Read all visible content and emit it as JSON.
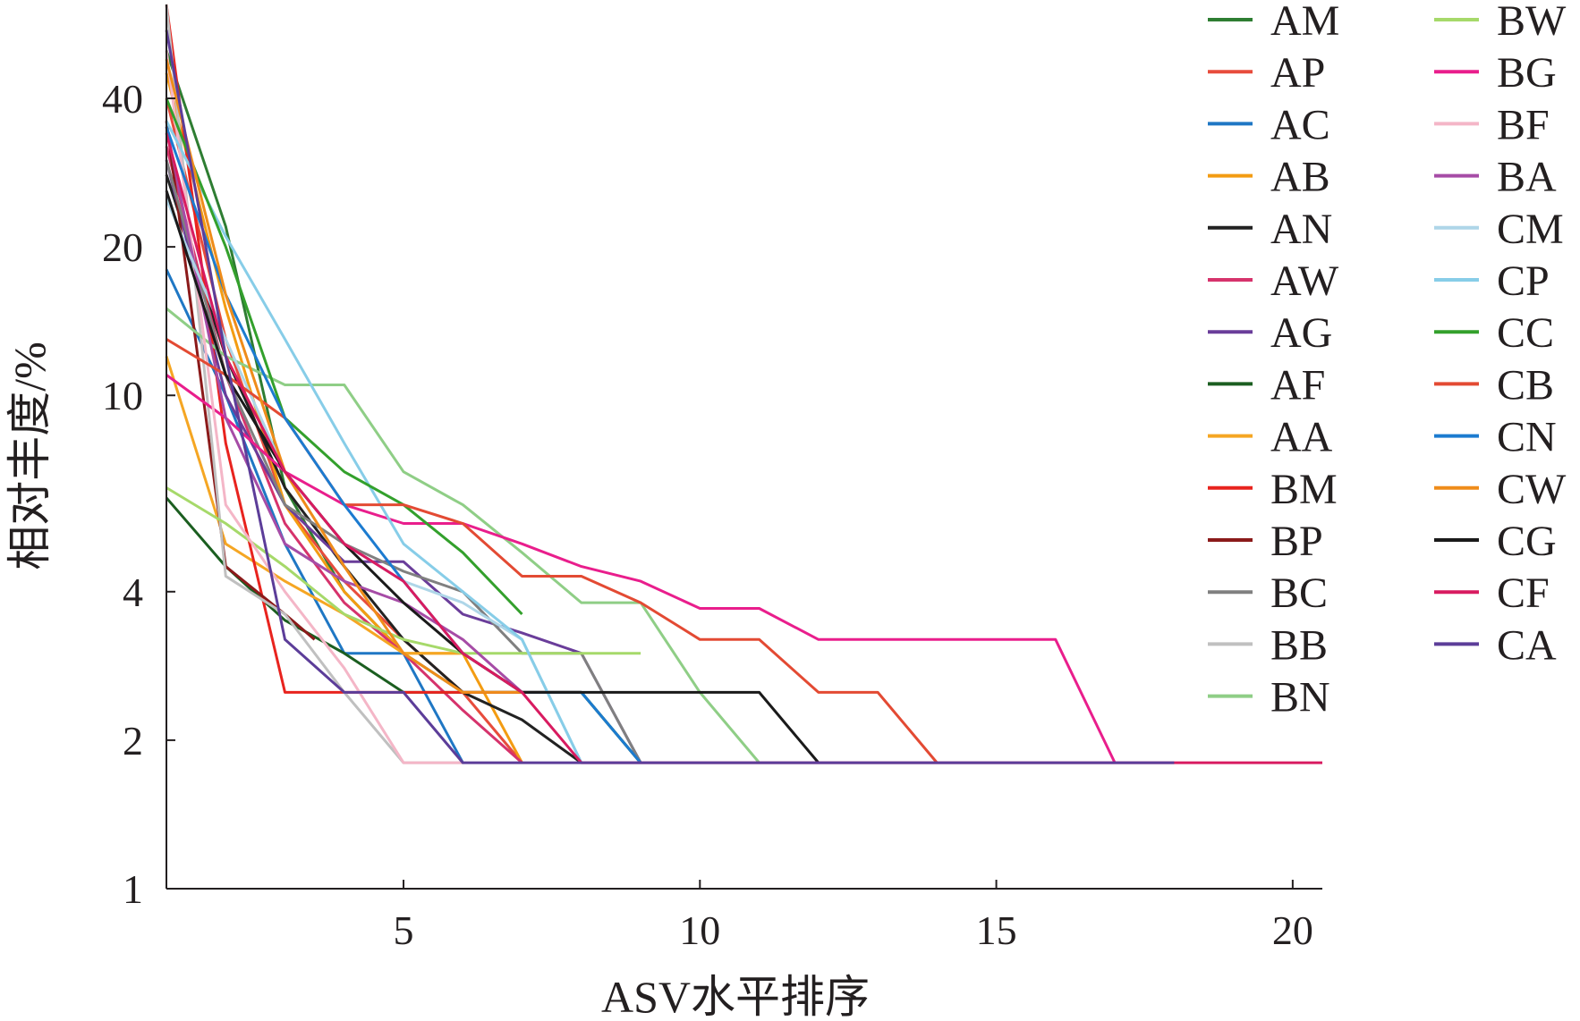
{
  "chart_data": {
    "type": "line",
    "title": "",
    "xlabel": "ASV水平排序",
    "ylabel": "相对丰度/%",
    "xscale": "linear",
    "yscale": "log",
    "xlim": [
      1,
      20.5
    ],
    "ylim": [
      1,
      62
    ],
    "xticks": [
      5,
      10,
      15,
      20
    ],
    "xtick_labels": [
      "5",
      "10",
      "15",
      "20"
    ],
    "yticks": [
      1,
      2,
      4,
      10,
      20,
      40
    ],
    "ytick_labels": [
      "1",
      "2",
      "4",
      "10",
      "20",
      "40"
    ],
    "grid": false,
    "legend_position": "right",
    "series": [
      {
        "name": "AM",
        "color": "#2e7d32",
        "x": [
          1,
          2,
          3,
          4,
          5,
          6,
          7,
          8,
          9
        ],
        "y": [
          50,
          22,
          6.5,
          4,
          3,
          2.5,
          2.5,
          2.5,
          1.8
        ]
      },
      {
        "name": "AP",
        "color": "#e74c3c",
        "x": [
          1,
          2,
          3,
          4,
          5,
          6,
          7
        ],
        "y": [
          40,
          13,
          6,
          4.2,
          3.2,
          2.5,
          1.8
        ]
      },
      {
        "name": "AC",
        "color": "#1f77c4",
        "x": [
          1,
          2,
          3,
          4,
          5,
          6
        ],
        "y": [
          18,
          10,
          5,
          3,
          3,
          1.8
        ]
      },
      {
        "name": "AB",
        "color": "#f39c12",
        "x": [
          1,
          2,
          3,
          4,
          5,
          6,
          7
        ],
        "y": [
          45,
          15,
          6,
          4,
          3,
          3,
          1.8
        ]
      },
      {
        "name": "AN",
        "color": "#222222",
        "x": [
          1,
          2,
          3,
          4,
          5,
          6,
          7,
          8
        ],
        "y": [
          28,
          12,
          6.5,
          4.5,
          3.2,
          2.5,
          2.2,
          1.8
        ]
      },
      {
        "name": "AW",
        "color": "#d6336c",
        "x": [
          1,
          2,
          3,
          4,
          5,
          6,
          7
        ],
        "y": [
          32,
          11,
          5.5,
          3.8,
          3,
          2.3,
          1.8
        ]
      },
      {
        "name": "AG",
        "color": "#6a3d9a",
        "x": [
          1,
          2,
          3,
          4,
          5,
          6,
          7,
          8,
          9
        ],
        "y": [
          30,
          10,
          6,
          4.6,
          4.6,
          3.6,
          3.3,
          3,
          1.8
        ]
      },
      {
        "name": "AF",
        "color": "#1b5e20",
        "x": [
          1,
          2,
          3,
          4,
          5,
          6,
          7,
          8,
          9
        ],
        "y": [
          6.2,
          4.5,
          3.5,
          3,
          2.5,
          2.5,
          2.5,
          2.5,
          1.8
        ]
      },
      {
        "name": "AA",
        "color": "#f5a623",
        "x": [
          1,
          2,
          3,
          4,
          5,
          6,
          7
        ],
        "y": [
          12,
          5,
          4.2,
          3.6,
          3,
          3,
          2.5
        ]
      },
      {
        "name": "BM",
        "color": "#e8231e",
        "x": [
          1,
          2,
          3,
          3.5,
          8
        ],
        "y": [
          62,
          8,
          2.5,
          2.5,
          2.5
        ]
      },
      {
        "name": "BP",
        "color": "#8b1a1a",
        "x": [
          1,
          2,
          3,
          3.5
        ],
        "y": [
          36,
          4.5,
          3.6,
          3.2
        ]
      },
      {
        "name": "BC",
        "color": "#808080",
        "x": [
          1,
          2,
          3,
          4,
          5,
          6,
          7,
          8,
          9
        ],
        "y": [
          30,
          11,
          6,
          5,
          4.4,
          4,
          3,
          3,
          1.8
        ]
      },
      {
        "name": "BB",
        "color": "#c0c0c0",
        "x": [
          1,
          2,
          3,
          4,
          5,
          6
        ],
        "y": [
          62,
          4.3,
          3.6,
          2.5,
          1.8,
          1.8
        ]
      },
      {
        "name": "BN",
        "color": "#8fce86",
        "x": [
          1,
          2,
          3,
          4,
          5,
          6,
          7,
          8,
          9,
          10,
          11
        ],
        "y": [
          15,
          12,
          10.5,
          10.5,
          7,
          6,
          4.8,
          3.8,
          3.8,
          2.5,
          1.8
        ]
      },
      {
        "name": "BW",
        "color": "#a6d96a",
        "x": [
          1,
          2,
          3,
          4,
          5,
          6,
          7,
          8,
          9
        ],
        "y": [
          6.5,
          5.5,
          4.5,
          3.6,
          3.2,
          3,
          3,
          3,
          3
        ]
      },
      {
        "name": "BG",
        "color": "#e91e8c",
        "x": [
          1,
          2,
          3,
          4,
          5,
          6,
          7,
          8,
          9,
          10,
          11,
          12,
          13,
          14,
          15,
          16,
          17
        ],
        "y": [
          11,
          9,
          7,
          6,
          5.5,
          5.5,
          5,
          4.5,
          4.2,
          3.7,
          3.7,
          3.2,
          3.2,
          3.2,
          3.2,
          3.2,
          1.8
        ]
      },
      {
        "name": "BF",
        "color": "#f4b6c7",
        "x": [
          1,
          2,
          3,
          4,
          5,
          6
        ],
        "y": [
          50,
          6,
          4,
          2.8,
          1.8,
          1.8
        ]
      },
      {
        "name": "BA",
        "color": "#a64ca6",
        "x": [
          1,
          2,
          3,
          4,
          5,
          6,
          7
        ],
        "y": [
          35,
          9,
          5,
          4.2,
          3.8,
          3.2,
          2.5
        ]
      },
      {
        "name": "CM",
        "color": "#aed6e8",
        "x": [
          1,
          2,
          3,
          4,
          5,
          6,
          7,
          8
        ],
        "y": [
          25,
          13,
          7,
          5,
          4.2,
          3.8,
          3.2,
          1.8
        ]
      },
      {
        "name": "CP",
        "color": "#87cde8",
        "x": [
          1,
          2,
          3,
          4,
          5,
          6,
          7,
          8
        ],
        "y": [
          36,
          21,
          13,
          8,
          5,
          4,
          3.2,
          1.8
        ]
      },
      {
        "name": "CC",
        "color": "#33a02c",
        "x": [
          1,
          2,
          3,
          4,
          5,
          6,
          7
        ],
        "y": [
          40,
          20,
          9,
          7,
          6,
          4.8,
          3.6
        ]
      },
      {
        "name": "CB",
        "color": "#e34a33",
        "x": [
          1,
          2,
          3,
          4,
          5,
          6,
          7,
          8,
          9,
          10,
          11,
          12,
          13,
          14
        ],
        "y": [
          13,
          11,
          9,
          6,
          6,
          5.5,
          4.3,
          4.3,
          3.8,
          3.2,
          3.2,
          2.5,
          2.5,
          1.8
        ]
      },
      {
        "name": "CN",
        "color": "#1c7bd0",
        "x": [
          1,
          2,
          3,
          4,
          5,
          6,
          7,
          8,
          9
        ],
        "y": [
          35,
          16,
          9,
          6,
          4.2,
          3,
          2.5,
          2.5,
          1.8
        ]
      },
      {
        "name": "CW",
        "color": "#ef8c1a",
        "x": [
          1,
          2,
          3,
          4,
          5,
          6,
          7
        ],
        "y": [
          48,
          16,
          7,
          4.5,
          3,
          2.5,
          2.5
        ]
      },
      {
        "name": "CG",
        "color": "#1a1a1a",
        "x": [
          1,
          2,
          3,
          4,
          5,
          6,
          7,
          8,
          9,
          10,
          11,
          12
        ],
        "y": [
          26,
          11,
          7,
          5,
          3.8,
          3,
          2.5,
          2.5,
          2.5,
          2.5,
          2.5,
          1.8
        ]
      },
      {
        "name": "CF",
        "color": "#d81b60",
        "x": [
          1,
          2,
          3,
          4,
          5,
          6,
          7,
          8,
          9,
          10,
          11,
          12,
          13,
          14,
          15,
          16,
          17,
          18,
          19,
          20.5
        ],
        "y": [
          34,
          12,
          7,
          5,
          4.2,
          3,
          2.5,
          1.8,
          1.8,
          1.8,
          1.8,
          1.8,
          1.8,
          1.8,
          1.8,
          1.8,
          1.8,
          1.8,
          1.8,
          1.8
        ]
      },
      {
        "name": "CA",
        "color": "#5c3d99",
        "x": [
          1,
          2,
          3,
          4,
          5,
          6,
          7,
          8,
          9,
          10,
          11,
          12,
          13,
          14,
          15,
          16,
          17,
          18
        ],
        "y": [
          55,
          12,
          3.2,
          2.5,
          2.5,
          1.8,
          1.8,
          1.8,
          1.8,
          1.8,
          1.8,
          1.8,
          1.8,
          1.8,
          1.8,
          1.8,
          1.8,
          1.8
        ]
      }
    ]
  }
}
